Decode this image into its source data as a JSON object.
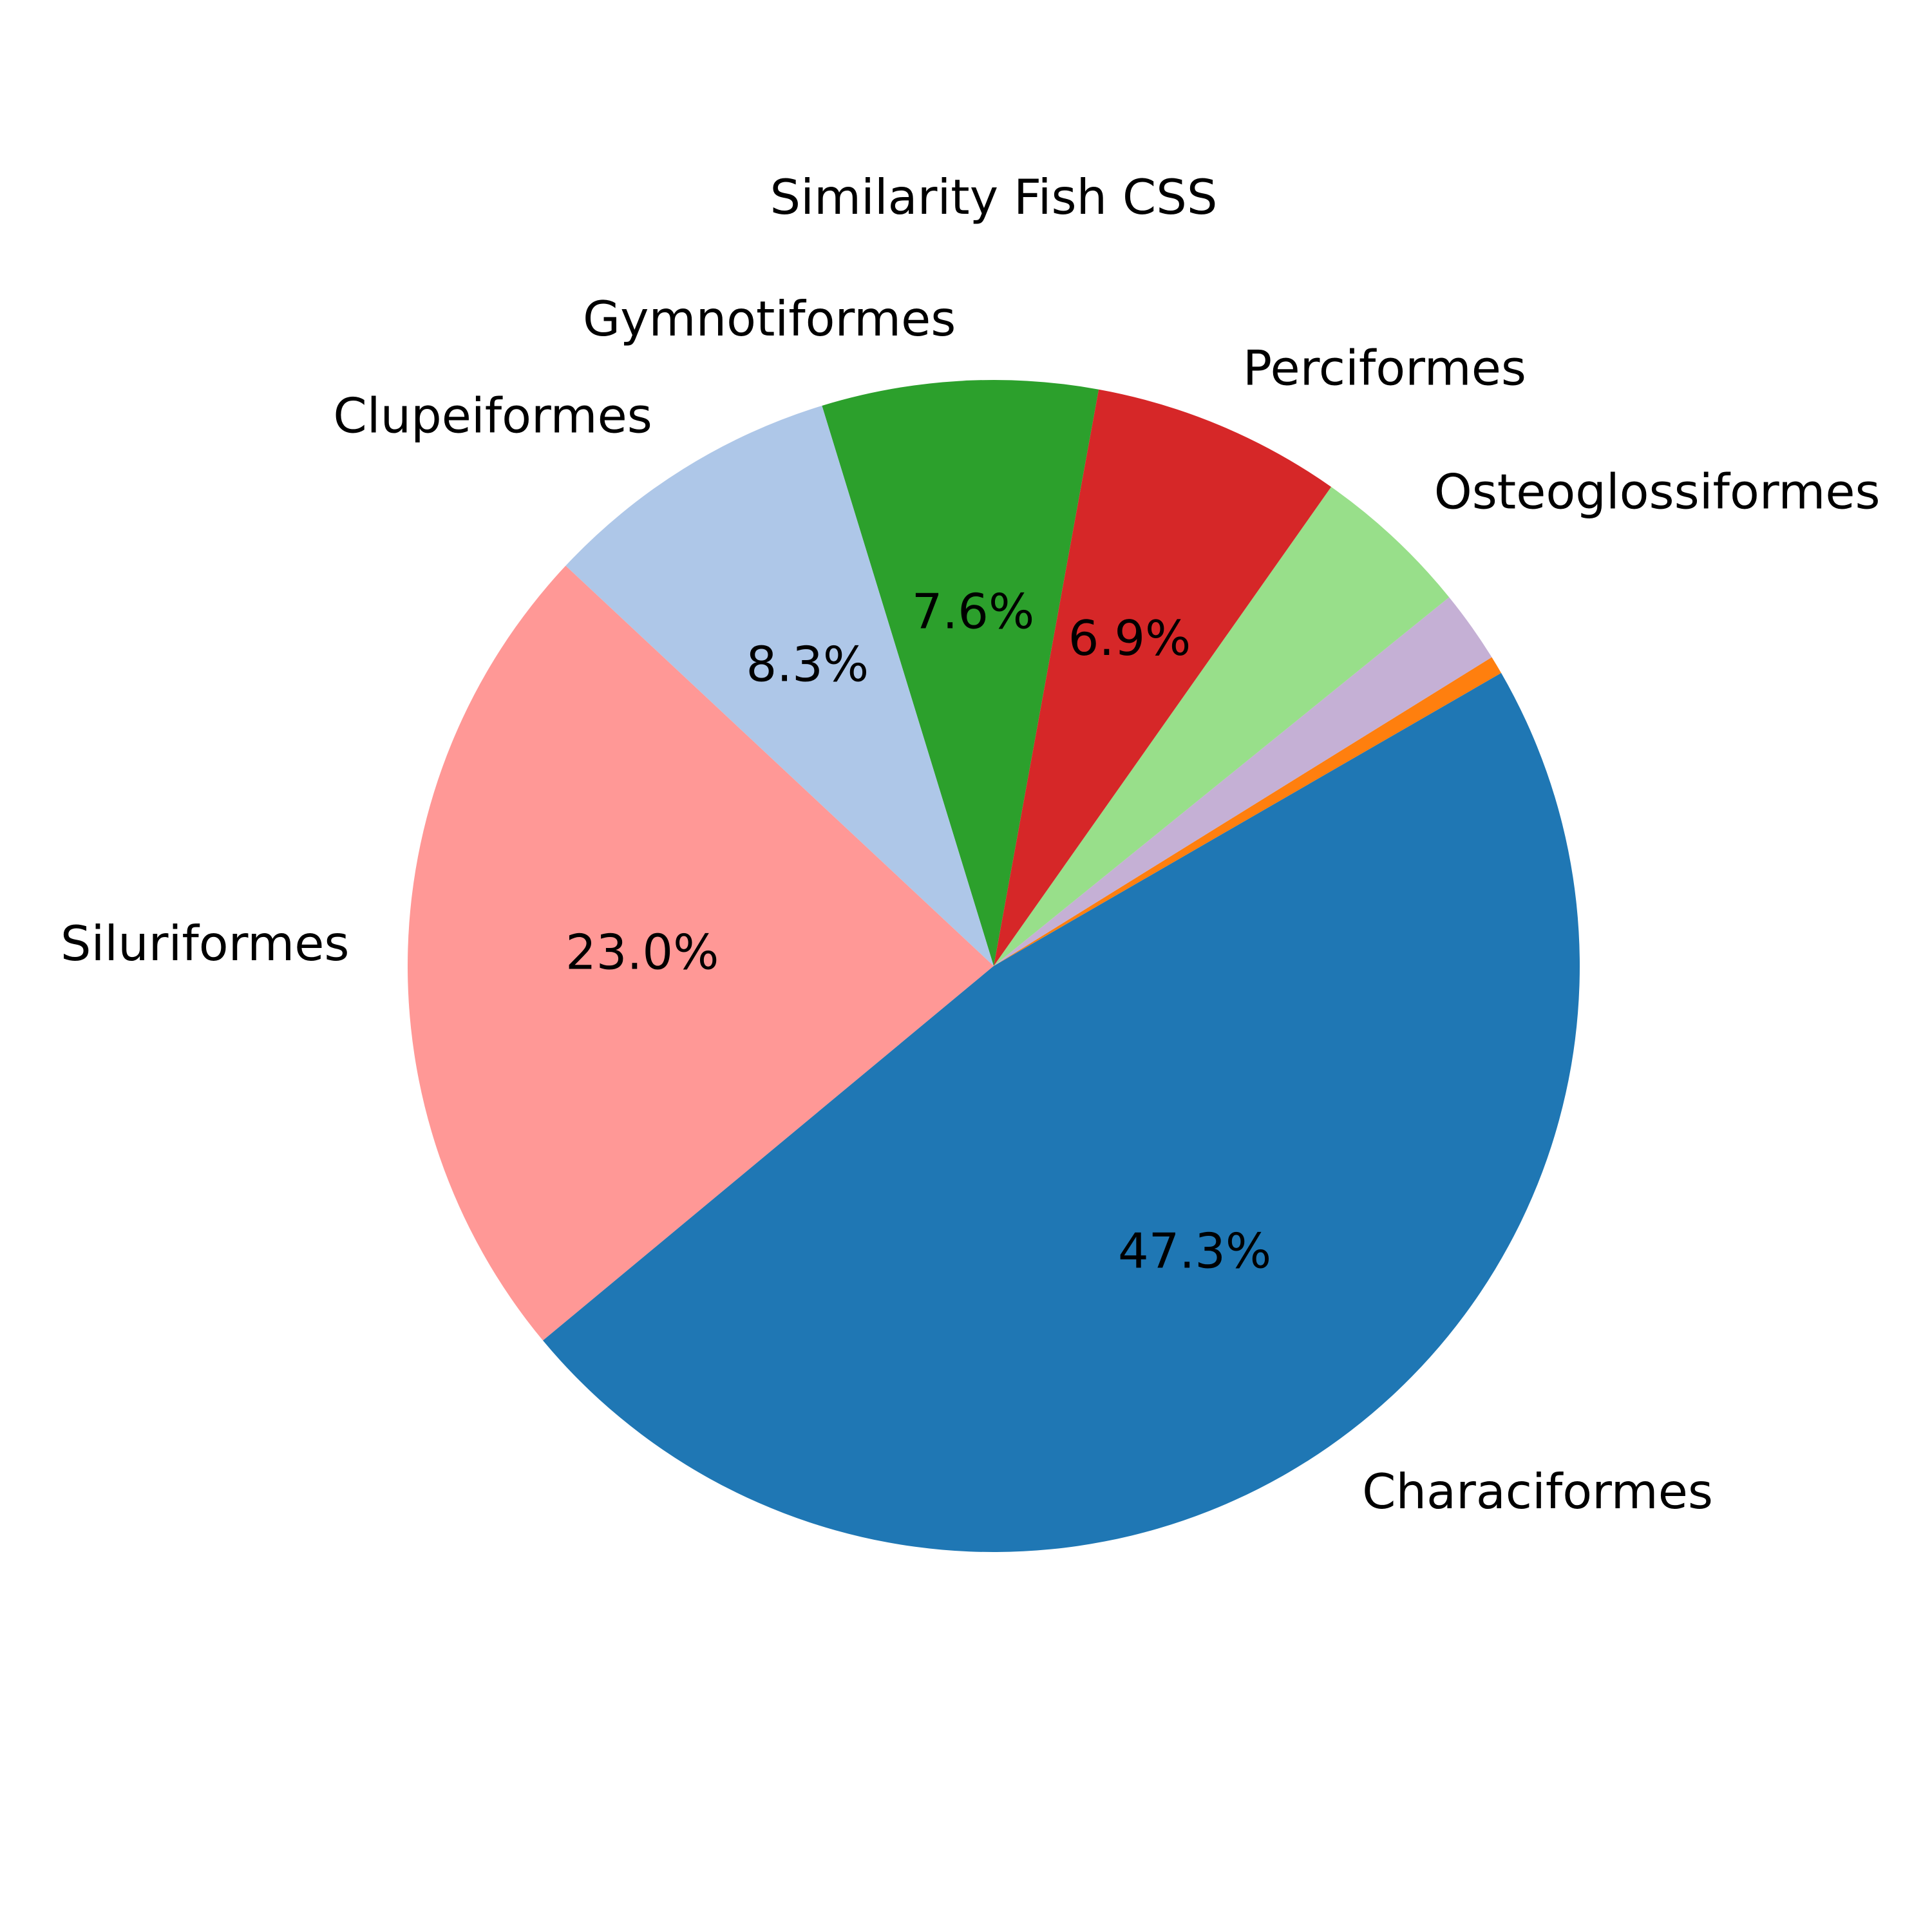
{
  "chart_data": {
    "type": "pie",
    "title": "Similarity Fish CSS",
    "start_angle_deg": 30,
    "direction": "counterclockwise",
    "slices": [
      {
        "label": "",
        "value": 0.5,
        "pct_label": "",
        "color": "#ff7f0e"
      },
      {
        "label": "",
        "value": 2.0,
        "pct_label": "",
        "color": "#c5b0d5"
      },
      {
        "label": "Osteoglossiformes",
        "value": 4.4,
        "pct_label": "",
        "color": "#98df8a"
      },
      {
        "label": "Perciformes",
        "value": 6.9,
        "pct_label": "6.9%",
        "color": "#d62728"
      },
      {
        "label": "Gymnotiformes",
        "value": 7.6,
        "pct_label": "7.6%",
        "color": "#2ca02c"
      },
      {
        "label": "Clupeiformes",
        "value": 8.3,
        "pct_label": "8.3%",
        "color": "#aec7e8"
      },
      {
        "label": "Siluriformes",
        "value": 23.0,
        "pct_label": "23.0%",
        "color": "#ff9896"
      },
      {
        "label": "Characiformes",
        "value": 47.3,
        "pct_label": "47.3%",
        "color": "#1f77b4"
      }
    ]
  }
}
